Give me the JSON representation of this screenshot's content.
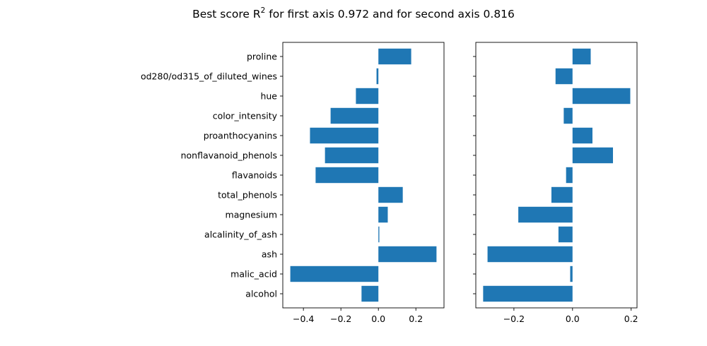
{
  "figure": {
    "title_main": "Best score R",
    "title_sup": "2",
    "title_rest": " for first axis 0.972 and for second axis 0.816"
  },
  "chart_data": [
    {
      "type": "bar",
      "orientation": "horizontal",
      "categories": [
        "alcohol",
        "malic_acid",
        "ash",
        "alcalinity_of_ash",
        "magnesium",
        "total_phenols",
        "flavanoids",
        "nonflavanoid_phenols",
        "proanthocyanins",
        "color_intensity",
        "hue",
        "od280/od315_of_diluted_wines",
        "proline"
      ],
      "values": [
        -0.09,
        -0.47,
        0.31,
        0.005,
        0.05,
        0.13,
        -0.335,
        -0.285,
        -0.365,
        -0.255,
        -0.12,
        -0.01,
        0.175
      ],
      "xlim": [
        -0.51,
        0.35
      ],
      "xticks": [
        -0.4,
        -0.2,
        0.0,
        0.2
      ],
      "xtick_labels": [
        "−0.4",
        "−0.2",
        "0.0",
        "0.2"
      ],
      "show_category_labels": true,
      "bar_color": "#1f77b4",
      "grid": false
    },
    {
      "type": "bar",
      "orientation": "horizontal",
      "categories": [
        "alcohol",
        "malic_acid",
        "ash",
        "alcalinity_of_ash",
        "magnesium",
        "total_phenols",
        "flavanoids",
        "nonflavanoid_phenols",
        "proanthocyanins",
        "color_intensity",
        "hue",
        "od280/od315_of_diluted_wines",
        "proline"
      ],
      "values": [
        -0.305,
        -0.008,
        -0.29,
        -0.048,
        -0.185,
        -0.072,
        -0.022,
        0.138,
        0.068,
        -0.03,
        0.197,
        -0.058,
        0.062
      ],
      "xlim": [
        -0.33,
        0.22
      ],
      "xticks": [
        -0.2,
        0.0,
        0.2
      ],
      "xtick_labels": [
        "−0.2",
        "0.0",
        "0.2"
      ],
      "show_category_labels": false,
      "bar_color": "#1f77b4",
      "grid": false
    }
  ]
}
